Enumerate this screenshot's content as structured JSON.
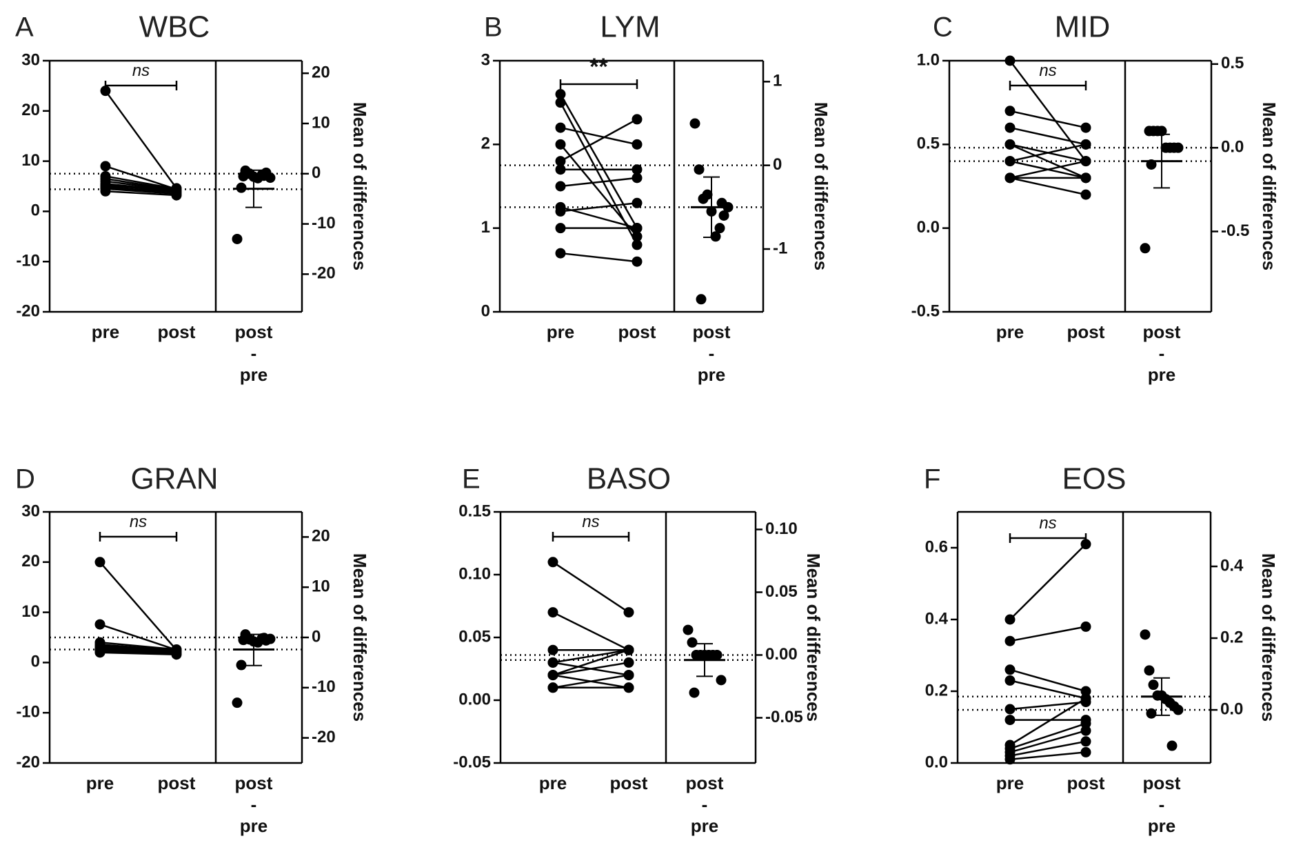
{
  "figure": {
    "x_categories": [
      "pre",
      "post"
    ],
    "diff_label": [
      "post",
      "-",
      "pre"
    ],
    "right_axis_label": "Mean of differences"
  },
  "chart_data": [
    {
      "panel": "A",
      "title": "WBC",
      "type": "scatter",
      "ylim": [
        -20,
        30
      ],
      "yticks": [
        -20,
        -10,
        0,
        10,
        20,
        30
      ],
      "ytick_labels": [
        "-20",
        "-10",
        "0",
        "10",
        "20",
        "30"
      ],
      "ylim_right": [
        -27.5,
        22.5
      ],
      "yticks_right": [
        -20,
        -10,
        0,
        10,
        20
      ],
      "ytick_labels_right": [
        "-20",
        "-10",
        "0",
        "10",
        "20"
      ],
      "significance": "ns",
      "pairs": [
        [
          24,
          4.6
        ],
        [
          9,
          4.4
        ],
        [
          7,
          4.5
        ],
        [
          6.5,
          4.3
        ],
        [
          6,
          4.2
        ],
        [
          5.5,
          4.1
        ],
        [
          5.2,
          4.0
        ],
        [
          5,
          4.4
        ],
        [
          4.8,
          3.8
        ],
        [
          4.5,
          3.5
        ],
        [
          4,
          3.2
        ]
      ],
      "pre_mean": 7.5,
      "post_mean": 4.4,
      "differences": [
        -13,
        -2.8,
        0.6,
        0,
        -0.6,
        -0.9,
        -0.2,
        0.2,
        -0.8,
        -0.5,
        -0.4
      ],
      "mean_diff": -3.0,
      "ci": [
        -6.7,
        0.7
      ]
    },
    {
      "panel": "B",
      "title": "LYM",
      "type": "scatter",
      "ylim": [
        0,
        3
      ],
      "yticks": [
        0,
        1,
        2,
        3
      ],
      "ytick_labels": [
        "0",
        "1",
        "2",
        "3"
      ],
      "ylim_right": [
        -1.75,
        1.25
      ],
      "yticks_right": [
        -1,
        0,
        1
      ],
      "ytick_labels_right": [
        "-1",
        "0",
        "1"
      ],
      "significance": "**",
      "pairs": [
        [
          2.6,
          1.0
        ],
        [
          2.5,
          0.8
        ],
        [
          2.2,
          2.0
        ],
        [
          2.0,
          0.9
        ],
        [
          1.8,
          2.3
        ],
        [
          1.7,
          1.7
        ],
        [
          1.5,
          1.6
        ],
        [
          1.25,
          1.0
        ],
        [
          1.2,
          1.3
        ],
        [
          1.0,
          1.0
        ],
        [
          0.7,
          0.6
        ]
      ],
      "pre_mean": 1.75,
      "post_mean": 1.25,
      "differences": [
        0.5,
        -0.05,
        -0.4,
        -0.35,
        -0.55,
        -0.85,
        -0.75,
        -0.6,
        -0.5,
        -1.6,
        -0.45
      ],
      "mean_diff": -0.5,
      "ci": [
        -0.86,
        -0.14
      ]
    },
    {
      "panel": "C",
      "title": "MID",
      "type": "scatter",
      "ylim": [
        -0.5,
        1.0
      ],
      "yticks": [
        -0.5,
        0.0,
        0.5,
        1.0
      ],
      "ytick_labels": [
        "-0.5",
        "0.0",
        "0.5",
        "1.0"
      ],
      "ylim_right": [
        -0.98,
        0.52
      ],
      "yticks_right": [
        -0.5,
        0.0,
        0.5
      ],
      "ytick_labels_right": [
        "-0.5",
        "0.0",
        "0.5"
      ],
      "significance": "ns",
      "pairs": [
        [
          1.0,
          0.4
        ],
        [
          0.7,
          0.6
        ],
        [
          0.6,
          0.5
        ],
        [
          0.5,
          0.4
        ],
        [
          0.5,
          0.3
        ],
        [
          0.4,
          0.5
        ],
        [
          0.4,
          0.3
        ],
        [
          0.3,
          0.4
        ],
        [
          0.3,
          0.3
        ],
        [
          0.3,
          0.2
        ]
      ],
      "pre_mean": 0.48,
      "post_mean": 0.4,
      "differences": [
        -0.6,
        0.1,
        0.1,
        0.1,
        0.1,
        0.0,
        0.0,
        0.0,
        0.0,
        -0.1
      ],
      "mean_diff": -0.08,
      "ci": [
        -0.24,
        0.08
      ]
    },
    {
      "panel": "D",
      "title": "GRAN",
      "type": "scatter",
      "ylim": [
        -20,
        30
      ],
      "yticks": [
        -20,
        -10,
        0,
        10,
        20,
        30
      ],
      "ytick_labels": [
        "-20",
        "-10",
        "0",
        "10",
        "20",
        "30"
      ],
      "ylim_right": [
        -25,
        25
      ],
      "yticks_right": [
        -20,
        -10,
        0,
        10,
        20
      ],
      "ytick_labels_right": [
        "-20",
        "-10",
        "0",
        "10",
        "20"
      ],
      "significance": "ns",
      "pairs": [
        [
          20,
          2.5
        ],
        [
          7.6,
          2.5
        ],
        [
          4,
          2.6
        ],
        [
          3.6,
          2.4
        ],
        [
          3.3,
          2.3
        ],
        [
          3,
          2.2
        ],
        [
          2.8,
          2.0
        ],
        [
          2.6,
          1.8
        ],
        [
          2.4,
          2.2
        ],
        [
          2.2,
          1.9
        ],
        [
          2,
          1.6
        ]
      ],
      "pre_mean": 5.0,
      "post_mean": 2.6,
      "differences": [
        -13,
        -5.5,
        0.6,
        -0.4,
        -0.8,
        -1.0,
        -0.2,
        -0.6,
        -0.3,
        -0.5,
        -0.1
      ],
      "mean_diff": -2.4,
      "ci": [
        -5.6,
        0.6
      ]
    },
    {
      "panel": "E",
      "title": "BASO",
      "type": "scatter",
      "ylim": [
        -0.05,
        0.15
      ],
      "yticks": [
        -0.05,
        0.0,
        0.05,
        0.1,
        0.15
      ],
      "ytick_labels": [
        "-0.05",
        "0.00",
        "0.05",
        "0.10",
        "0.15"
      ],
      "ylim_right": [
        -0.086,
        0.114
      ],
      "yticks_right": [
        -0.05,
        0.0,
        0.05,
        0.1
      ],
      "ytick_labels_right": [
        "-0.05",
        "0.00",
        "0.05",
        "0.10"
      ],
      "significance": "ns",
      "pairs": [
        [
          0.11,
          0.07
        ],
        [
          0.07,
          0.04
        ],
        [
          0.04,
          0.04
        ],
        [
          0.03,
          0.04
        ],
        [
          0.03,
          0.02
        ],
        [
          0.02,
          0.04
        ],
        [
          0.02,
          0.03
        ],
        [
          0.02,
          0.01
        ],
        [
          0.01,
          0.02
        ],
        [
          0.01,
          0.01
        ]
      ],
      "pre_mean": 0.036,
      "post_mean": 0.032,
      "differences": [
        0.02,
        0.01,
        0.0,
        0.0,
        0.0,
        0.0,
        0.0,
        0.0,
        -0.02,
        -0.03
      ],
      "mean_diff": -0.004,
      "ci": [
        -0.017,
        0.009
      ]
    },
    {
      "panel": "F",
      "title": "EOS",
      "type": "scatter",
      "ylim": [
        0.0,
        0.7
      ],
      "yticks": [
        0.0,
        0.2,
        0.4,
        0.6
      ],
      "ytick_labels": [
        "0.0",
        "0.2",
        "0.4",
        "0.6"
      ],
      "ylim_right": [
        -0.148,
        0.552
      ],
      "yticks_right": [
        0.0,
        0.2,
        0.4
      ],
      "ytick_labels_right": [
        "0.0",
        "0.2",
        "0.4"
      ],
      "significance": "ns",
      "pairs": [
        [
          0.4,
          0.61
        ],
        [
          0.34,
          0.38
        ],
        [
          0.26,
          0.2
        ],
        [
          0.23,
          0.18
        ],
        [
          0.15,
          0.17
        ],
        [
          0.12,
          0.12
        ],
        [
          0.05,
          0.18
        ],
        [
          0.04,
          0.11
        ],
        [
          0.03,
          0.09
        ],
        [
          0.02,
          0.06
        ],
        [
          0.01,
          0.03
        ]
      ],
      "pre_mean": 0.148,
      "post_mean": 0.185,
      "differences": [
        0.21,
        0.11,
        0.07,
        0.04,
        0.04,
        0.03,
        0.02,
        0.01,
        0.0,
        -0.01,
        -0.1
      ],
      "mean_diff": 0.037,
      "ci": [
        -0.015,
        0.089
      ]
    }
  ]
}
